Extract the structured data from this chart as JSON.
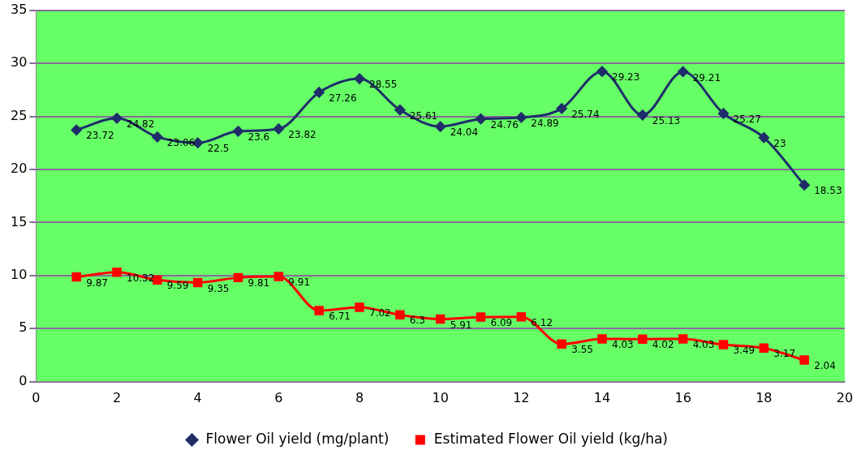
{
  "chart_data": {
    "type": "line",
    "x": [
      1,
      2,
      3,
      4,
      5,
      6,
      7,
      8,
      9,
      10,
      11,
      12,
      13,
      14,
      15,
      16,
      17,
      18,
      19
    ],
    "series": [
      {
        "name": "Flower Oil yield (mg/plant)",
        "color": "#1f2d6b",
        "marker": "diamond",
        "values": [
          23.72,
          24.82,
          23.06,
          22.5,
          23.6,
          23.82,
          27.26,
          28.55,
          25.61,
          24.04,
          24.76,
          24.89,
          25.74,
          29.23,
          25.13,
          29.21,
          25.27,
          23,
          18.53
        ]
      },
      {
        "name": "Estimated Flower Oil yield (kg/ha)",
        "color": "#ff0000",
        "marker": "square",
        "values": [
          9.87,
          10.32,
          9.59,
          9.35,
          9.81,
          9.91,
          6.71,
          7.02,
          6.3,
          5.91,
          6.09,
          6.12,
          3.55,
          4.03,
          4.02,
          4.03,
          3.49,
          3.17,
          2.04
        ]
      }
    ],
    "xlim": [
      0,
      20
    ],
    "xticks": [
      0,
      2,
      4,
      6,
      8,
      10,
      12,
      14,
      16,
      18,
      20
    ],
    "ylim": [
      0,
      35
    ],
    "yticks": [
      0,
      5,
      10,
      15,
      20,
      25,
      30,
      35
    ],
    "grid": "y",
    "legend": "bottom",
    "data_labels": true
  }
}
